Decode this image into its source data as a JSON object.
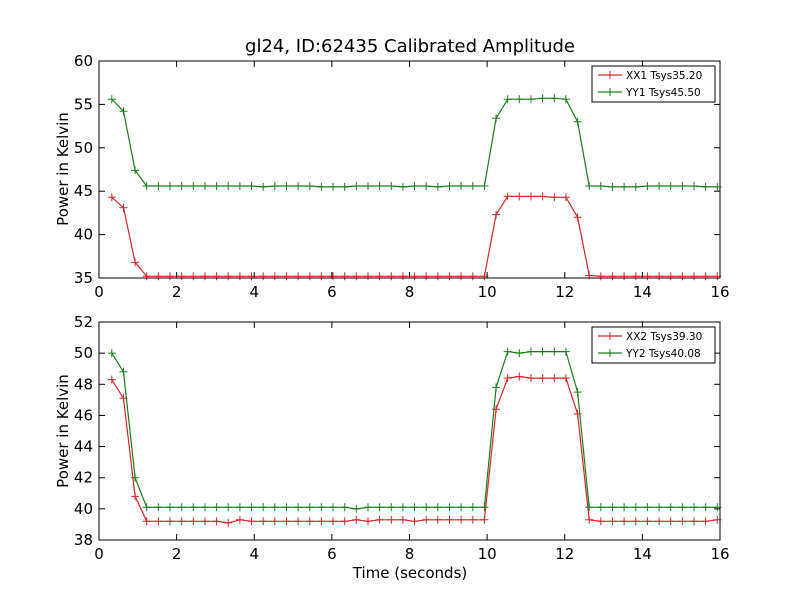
{
  "title": "gl24, ID:62435 Calibrated Amplitude",
  "chart_data": [
    {
      "type": "line",
      "title": "gl24, ID:62435 Calibrated Amplitude",
      "xlabel": "",
      "ylabel": "Power in Kelvin",
      "xlim": [
        0,
        16
      ],
      "ylim": [
        35,
        60
      ],
      "xticks": [
        0,
        2,
        4,
        6,
        8,
        10,
        12,
        14,
        16
      ],
      "yticks": [
        35,
        40,
        45,
        50,
        55,
        60
      ],
      "grid": false,
      "legend_position": "top-right",
      "x": [
        0.33,
        0.63,
        0.93,
        1.23,
        1.53,
        1.83,
        2.13,
        2.43,
        2.73,
        3.03,
        3.33,
        3.63,
        3.93,
        4.23,
        4.53,
        4.83,
        5.13,
        5.43,
        5.73,
        6.03,
        6.33,
        6.63,
        6.93,
        7.23,
        7.53,
        7.83,
        8.13,
        8.43,
        8.73,
        9.03,
        9.33,
        9.63,
        9.93,
        10.23,
        10.53,
        10.83,
        11.13,
        11.43,
        11.73,
        12.03,
        12.33,
        12.63,
        12.93,
        13.23,
        13.53,
        13.83,
        14.13,
        14.43,
        14.73,
        15.03,
        15.33,
        15.63,
        15.93
      ],
      "series": [
        {
          "name": "XX1 Tsys35.20",
          "color": "#d62728",
          "values": [
            44.3,
            43.1,
            36.8,
            35.2,
            35.2,
            35.2,
            35.2,
            35.2,
            35.2,
            35.2,
            35.2,
            35.2,
            35.2,
            35.2,
            35.2,
            35.2,
            35.2,
            35.2,
            35.2,
            35.2,
            35.2,
            35.2,
            35.2,
            35.2,
            35.2,
            35.2,
            35.2,
            35.2,
            35.2,
            35.2,
            35.2,
            35.2,
            35.2,
            42.3,
            44.4,
            44.4,
            44.4,
            44.4,
            44.3,
            44.3,
            42.0,
            35.3,
            35.2,
            35.2,
            35.2,
            35.2,
            35.2,
            35.2,
            35.2,
            35.2,
            35.2,
            35.2,
            35.2
          ]
        },
        {
          "name": "YY1 Tsys45.50",
          "color": "#1a7f1a",
          "values": [
            55.6,
            54.2,
            47.4,
            45.6,
            45.6,
            45.6,
            45.6,
            45.6,
            45.6,
            45.6,
            45.6,
            45.6,
            45.6,
            45.5,
            45.6,
            45.6,
            45.6,
            45.6,
            45.5,
            45.5,
            45.5,
            45.6,
            45.6,
            45.6,
            45.6,
            45.5,
            45.6,
            45.6,
            45.5,
            45.6,
            45.6,
            45.6,
            45.6,
            53.4,
            55.6,
            55.6,
            55.6,
            55.7,
            55.7,
            55.6,
            53.0,
            45.6,
            45.6,
            45.5,
            45.5,
            45.5,
            45.6,
            45.6,
            45.6,
            45.6,
            45.6,
            45.5,
            45.5
          ]
        }
      ]
    },
    {
      "type": "line",
      "title": "",
      "xlabel": "Time (seconds)",
      "ylabel": "Power in Kelvin",
      "xlim": [
        0,
        16
      ],
      "ylim": [
        38,
        52
      ],
      "xticks": [
        0,
        2,
        4,
        6,
        8,
        10,
        12,
        14,
        16
      ],
      "yticks": [
        38,
        40,
        42,
        44,
        46,
        48,
        50,
        52
      ],
      "grid": false,
      "legend_position": "top-right",
      "x": [
        0.33,
        0.63,
        0.93,
        1.23,
        1.53,
        1.83,
        2.13,
        2.43,
        2.73,
        3.03,
        3.33,
        3.63,
        3.93,
        4.23,
        4.53,
        4.83,
        5.13,
        5.43,
        5.73,
        6.03,
        6.33,
        6.63,
        6.93,
        7.23,
        7.53,
        7.83,
        8.13,
        8.43,
        8.73,
        9.03,
        9.33,
        9.63,
        9.93,
        10.23,
        10.53,
        10.83,
        11.13,
        11.43,
        11.73,
        12.03,
        12.33,
        12.63,
        12.93,
        13.23,
        13.53,
        13.83,
        14.13,
        14.43,
        14.73,
        15.03,
        15.33,
        15.63,
        15.93
      ],
      "series": [
        {
          "name": "XX2 Tsys39.30",
          "color": "#d62728",
          "values": [
            48.3,
            47.1,
            40.8,
            39.2,
            39.2,
            39.2,
            39.2,
            39.2,
            39.2,
            39.2,
            39.1,
            39.3,
            39.2,
            39.2,
            39.2,
            39.2,
            39.2,
            39.2,
            39.2,
            39.2,
            39.2,
            39.3,
            39.2,
            39.3,
            39.3,
            39.3,
            39.2,
            39.3,
            39.3,
            39.3,
            39.3,
            39.3,
            39.3,
            46.4,
            48.4,
            48.5,
            48.4,
            48.4,
            48.4,
            48.4,
            46.1,
            39.3,
            39.2,
            39.2,
            39.2,
            39.2,
            39.2,
            39.2,
            39.2,
            39.2,
            39.2,
            39.2,
            39.3
          ]
        },
        {
          "name": "YY2 Tsys40.08",
          "color": "#1a7f1a",
          "values": [
            50.0,
            48.8,
            42.0,
            40.1,
            40.1,
            40.1,
            40.1,
            40.1,
            40.1,
            40.1,
            40.1,
            40.1,
            40.1,
            40.1,
            40.1,
            40.1,
            40.1,
            40.1,
            40.1,
            40.1,
            40.1,
            40.0,
            40.1,
            40.1,
            40.1,
            40.1,
            40.1,
            40.1,
            40.1,
            40.1,
            40.1,
            40.1,
            40.1,
            47.8,
            50.1,
            50.0,
            50.1,
            50.1,
            50.1,
            50.1,
            47.5,
            40.1,
            40.1,
            40.1,
            40.1,
            40.1,
            40.1,
            40.1,
            40.1,
            40.1,
            40.1,
            40.1,
            40.1
          ]
        }
      ]
    }
  ]
}
